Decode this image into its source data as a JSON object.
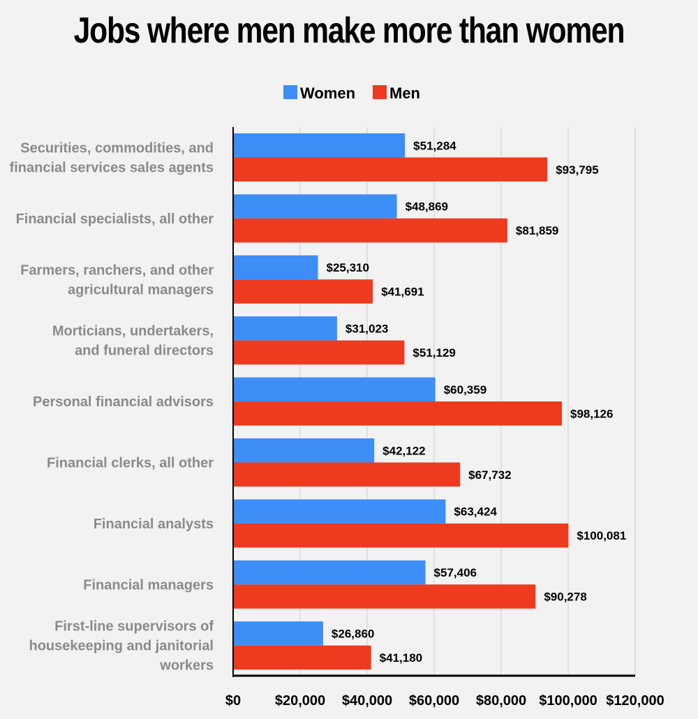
{
  "chart_data": {
    "type": "bar",
    "orientation": "horizontal",
    "title": "Jobs where men make more than women",
    "categories": [
      "Securities, commodities, and financial services sales agents",
      "Financial specialists, all other",
      "Farmers, ranchers, and other agricultural managers",
      "Morticians, undertakers, and funeral directors",
      "Personal financial advisors",
      "Financial clerks, all other",
      "Financial analysts",
      "Financial managers",
      "First-line supervisors of housekeeping and janitorial workers"
    ],
    "category_lines": [
      [
        "Securities, commodities, and",
        "financial services sales agents"
      ],
      [
        "Financial specialists, all other"
      ],
      [
        "Farmers, ranchers, and other",
        "agricultural managers"
      ],
      [
        "Morticians, undertakers,",
        "and funeral directors"
      ],
      [
        "Personal financial advisors"
      ],
      [
        "Financial clerks, all other"
      ],
      [
        "Financial analysts"
      ],
      [
        "Financial managers"
      ],
      [
        "First-line supervisors of",
        "housekeeping and janitorial",
        "workers"
      ]
    ],
    "series": [
      {
        "name": "Women",
        "color": "#3d8ef7",
        "values": [
          51284,
          48869,
          25310,
          31023,
          60359,
          42122,
          63424,
          57406,
          26860
        ],
        "labels": [
          "$51,284",
          "$48,869",
          "$25,310",
          "$31,023",
          "$60,359",
          "$42,122",
          "$63,424",
          "$57,406",
          "$26,860"
        ]
      },
      {
        "name": "Men",
        "color": "#ee3a1f",
        "values": [
          93795,
          81859,
          41691,
          51129,
          98126,
          67732,
          100081,
          90278,
          41180
        ],
        "labels": [
          "$93,795",
          "$81,859",
          "$41,691",
          "$51,129",
          "$98,126",
          "$67,732",
          "$100,081",
          "$90,278",
          "$41,180"
        ]
      }
    ],
    "xlim": [
      0,
      120000
    ],
    "xticks": [
      0,
      20000,
      40000,
      60000,
      80000,
      100000,
      120000
    ],
    "xtick_labels": [
      "$0",
      "$20,000",
      "$40,000",
      "$60,000",
      "$80,000",
      "$100,000",
      "$120,000"
    ],
    "grid": "vertical",
    "legend_position": "top-center"
  }
}
